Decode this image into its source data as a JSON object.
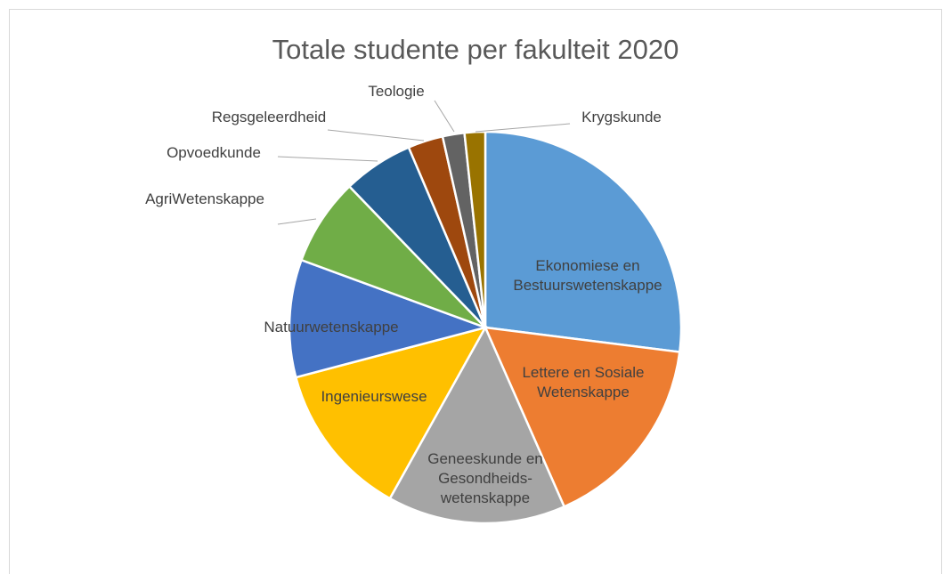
{
  "chart_data": {
    "type": "pie",
    "title": "Totale studente per fakulteit 2020",
    "categories": [
      "Ekonomiese en\nBestuurswetenskappe",
      "Lettere en Sosiale\nWetenskappe",
      "Geneeskunde en\nGesondheids-\nwetenskappe",
      "Ingenieurswese",
      "Natuurwetenskappe",
      "AgriWetenskappe",
      "Opvoedkunde",
      "Regsgeleerdheid",
      "Teologie",
      "Krygskunde"
    ],
    "values": [
      27,
      16.4,
      14.7,
      12.8,
      9.7,
      7.2,
      5.8,
      2.9,
      1.8,
      1.7
    ],
    "colors": [
      "#5b9bd5",
      "#ed7d31",
      "#a5a5a5",
      "#ffc000",
      "#4472c4",
      "#70ad47",
      "#255e91",
      "#9e480e",
      "#636363",
      "#997300"
    ],
    "start_angle": "top",
    "direction": "clockwise"
  }
}
